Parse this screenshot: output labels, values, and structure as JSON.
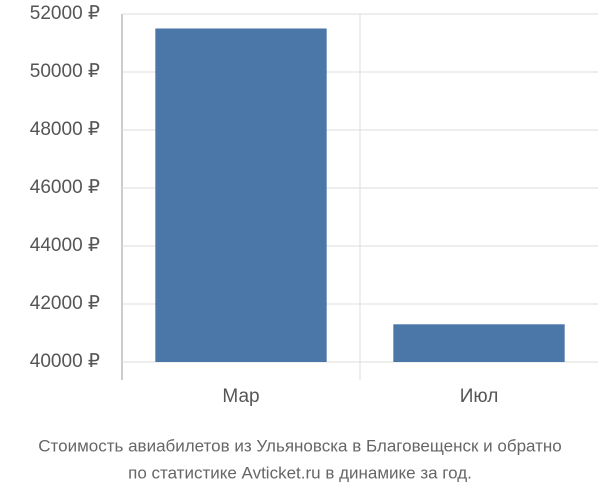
{
  "chart_data": {
    "type": "bar",
    "title": [
      "Стоимость авиабилетов из Ульяновска в Благовещенск и обратно",
      "по статистике Avticket.ru в динамике за год."
    ],
    "categories": [
      "Мар",
      "Июл"
    ],
    "values": [
      51500,
      41300
    ],
    "color": "#4a76a8",
    "ylim": [
      40000,
      52000
    ],
    "yticks": [
      {
        "value": 40000,
        "label": "40000 ₽"
      },
      {
        "value": 42000,
        "label": "42000 ₽"
      },
      {
        "value": 44000,
        "label": "44000 ₽"
      },
      {
        "value": 46000,
        "label": "46000 ₽"
      },
      {
        "value": 48000,
        "label": "48000 ₽"
      },
      {
        "value": 50000,
        "label": "50000 ₽"
      },
      {
        "value": 52000,
        "label": "52000 ₽"
      }
    ],
    "grid": true
  }
}
